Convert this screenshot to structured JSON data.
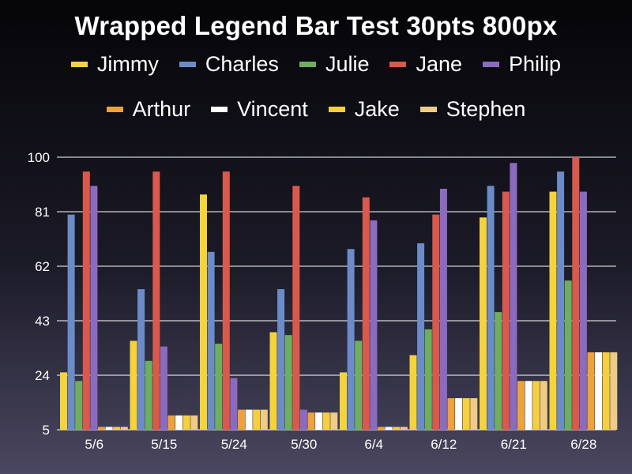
{
  "chart_data": {
    "type": "bar",
    "title": "Wrapped Legend Bar Test 30pts 800px",
    "xlabel": "",
    "ylabel": "",
    "categories": [
      "5/6",
      "5/15",
      "5/24",
      "5/30",
      "6/4",
      "6/12",
      "6/21",
      "6/28"
    ],
    "yticks": [
      5,
      24,
      43,
      62,
      81,
      100
    ],
    "ylim": [
      5,
      100
    ],
    "grid": true,
    "legend_position": "top",
    "series": [
      {
        "name": "Jimmy",
        "color": "#f5d33a",
        "values": [
          25,
          36,
          87,
          39,
          25,
          31,
          79,
          88
        ]
      },
      {
        "name": "Charles",
        "color": "#6b8cc9",
        "values": [
          80,
          54,
          67,
          54,
          68,
          70,
          90,
          95
        ]
      },
      {
        "name": "Julie",
        "color": "#6fae5e",
        "values": [
          22,
          29,
          35,
          38,
          36,
          40,
          46,
          57
        ]
      },
      {
        "name": "Jane",
        "color": "#d9594c",
        "values": [
          95,
          95,
          95,
          90,
          86,
          80,
          88,
          100
        ]
      },
      {
        "name": "Philip",
        "color": "#8b6bc0",
        "values": [
          90,
          34,
          23,
          12,
          78,
          89,
          98,
          88
        ]
      },
      {
        "name": "Arthur",
        "color": "#eda23c",
        "values": [
          6,
          10,
          12,
          11,
          6,
          16,
          22,
          32
        ]
      },
      {
        "name": "Vincent",
        "color": "#ffffff",
        "values": [
          6,
          10,
          12,
          11,
          6,
          16,
          22,
          32
        ]
      },
      {
        "name": "Jake",
        "color": "#f6cf3e",
        "values": [
          6,
          10,
          12,
          11,
          6,
          16,
          22,
          32
        ]
      },
      {
        "name": "Stephen",
        "color": "#eecb87",
        "values": [
          6,
          10,
          12,
          11,
          6,
          16,
          22,
          32
        ]
      }
    ]
  }
}
